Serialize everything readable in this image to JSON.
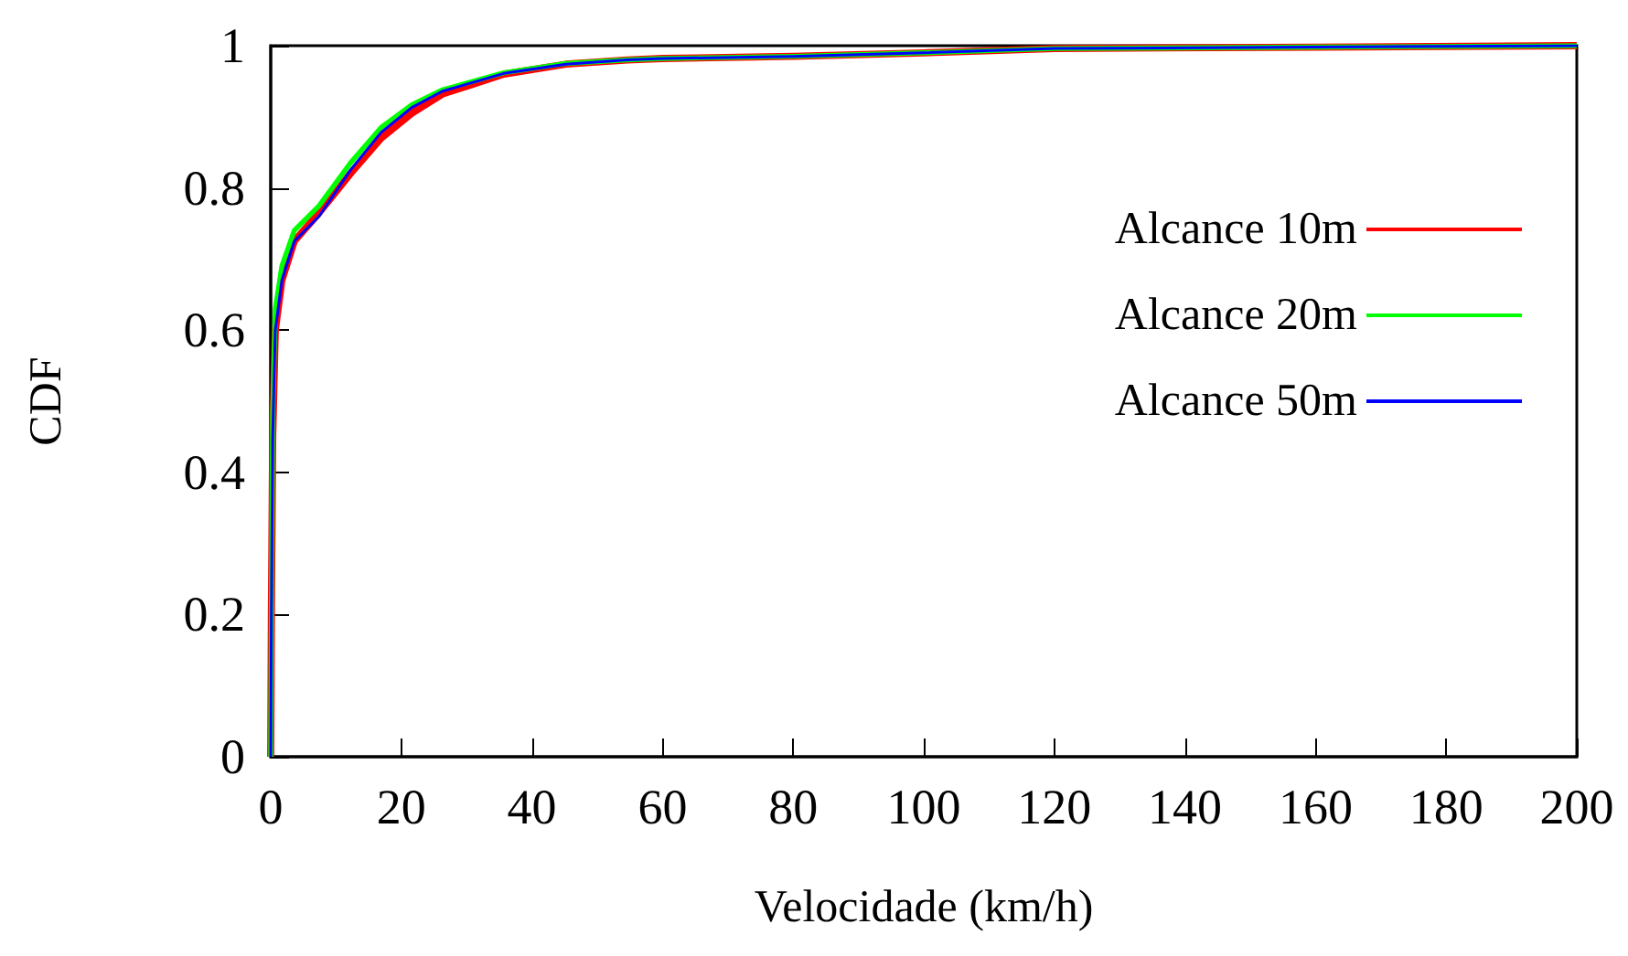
{
  "chart_data": {
    "type": "line",
    "xlabel": "Velocidade (km/h)",
    "ylabel": "CDF",
    "xlim": [
      0,
      200
    ],
    "xticks": [
      0,
      20,
      40,
      60,
      80,
      100,
      120,
      140,
      160,
      180,
      200
    ],
    "ylim": [
      0,
      1
    ],
    "yticks": [
      0,
      0.2,
      0.4,
      0.6,
      0.8,
      1
    ],
    "grid": false,
    "legend": "right",
    "marker": "none",
    "line_style": "solid",
    "series": [
      {
        "name": "Alcance 10m",
        "color": "#ff0000",
        "x": [
          0,
          0.1,
          0.3,
          0.7,
          1.7,
          3.6,
          7.4,
          12.2,
          16.9,
          21.6,
          26.3,
          35.7,
          45.2,
          54.6,
          60,
          80,
          100,
          120,
          160,
          200
        ],
        "values": [
          0,
          0.2,
          0.45,
          0.6,
          0.67,
          0.725,
          0.765,
          0.82,
          0.87,
          0.905,
          0.932,
          0.96,
          0.974,
          0.98,
          0.982,
          0.985,
          0.99,
          0.996,
          0.998,
          1
        ]
      },
      {
        "name": "Alcance 20m",
        "color": "#00ff00",
        "x": [
          0,
          0.1,
          0.3,
          0.7,
          1.7,
          3.6,
          7.4,
          12.2,
          16.9,
          21.6,
          26.3,
          35.7,
          45.2,
          54.6,
          60,
          80,
          100,
          120,
          160,
          200
        ],
        "values": [
          0,
          0.22,
          0.48,
          0.63,
          0.69,
          0.74,
          0.775,
          0.835,
          0.885,
          0.917,
          0.938,
          0.962,
          0.975,
          0.98,
          0.982,
          0.985,
          0.99,
          0.996,
          0.998,
          1
        ]
      },
      {
        "name": "Alcance 50m",
        "color": "#0000ff",
        "x": [
          0,
          0.1,
          0.3,
          0.7,
          1.7,
          3.6,
          7.4,
          12.2,
          16.9,
          21.6,
          26.3,
          35.7,
          45.2,
          54.6,
          60,
          80,
          100,
          120,
          160,
          200
        ],
        "values": [
          0,
          0.2,
          0.45,
          0.6,
          0.67,
          0.725,
          0.76,
          0.825,
          0.878,
          0.913,
          0.936,
          0.961,
          0.974,
          0.98,
          0.982,
          0.985,
          0.99,
          0.996,
          0.998,
          1
        ]
      }
    ]
  }
}
